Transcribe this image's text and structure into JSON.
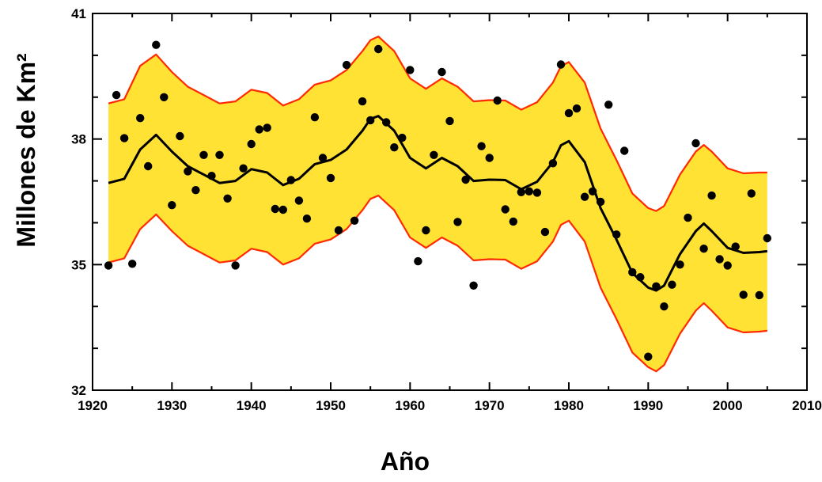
{
  "chart_data": {
    "type": "scatter",
    "title": "",
    "xlabel": "Año",
    "ylabel": "Millones de Km²",
    "xlim": [
      1920,
      2010
    ],
    "ylim": [
      32,
      41
    ],
    "x_ticks": [
      "1920",
      "1930",
      "1940",
      "1950",
      "1960",
      "1970",
      "1980",
      "1990",
      "2000",
      "2010"
    ],
    "y_ticks": [
      "32",
      "35",
      "38",
      "41"
    ],
    "colors": {
      "band": "#ffe234",
      "band_edge": "#ff2a00",
      "trend": "#000000",
      "points": "#000000"
    },
    "series": [
      {
        "type": "scatter",
        "points": [
          [
            1922,
            34.98
          ],
          [
            1923,
            39.05
          ],
          [
            1924,
            38.02
          ],
          [
            1925,
            35.02
          ],
          [
            1926,
            38.5
          ],
          [
            1927,
            37.35
          ],
          [
            1928,
            40.25
          ],
          [
            1929,
            39.0
          ],
          [
            1930,
            36.42
          ],
          [
            1931,
            38.07
          ],
          [
            1932,
            37.23
          ],
          [
            1933,
            36.78
          ],
          [
            1934,
            37.62
          ],
          [
            1935,
            37.12
          ],
          [
            1936,
            37.62
          ],
          [
            1937,
            36.58
          ],
          [
            1938,
            34.98
          ],
          [
            1939,
            37.3
          ],
          [
            1940,
            37.88
          ],
          [
            1941,
            38.23
          ],
          [
            1942,
            38.27
          ],
          [
            1943,
            36.33
          ],
          [
            1944,
            36.31
          ],
          [
            1945,
            37.02
          ],
          [
            1946,
            36.53
          ],
          [
            1947,
            36.1
          ],
          [
            1948,
            38.52
          ],
          [
            1949,
            37.55
          ],
          [
            1950,
            37.07
          ],
          [
            1951,
            35.82
          ],
          [
            1952,
            39.77
          ],
          [
            1953,
            36.05
          ],
          [
            1954,
            38.9
          ],
          [
            1955,
            38.45
          ],
          [
            1956,
            40.15
          ],
          [
            1957,
            38.4
          ],
          [
            1958,
            37.8
          ],
          [
            1959,
            38.03
          ],
          [
            1960,
            39.65
          ],
          [
            1961,
            35.08
          ],
          [
            1962,
            35.82
          ],
          [
            1963,
            37.62
          ],
          [
            1964,
            39.6
          ],
          [
            1965,
            38.43
          ],
          [
            1966,
            36.02
          ],
          [
            1967,
            37.03
          ],
          [
            1968,
            34.5
          ],
          [
            1969,
            37.83
          ],
          [
            1970,
            37.55
          ],
          [
            1971,
            38.92
          ],
          [
            1972,
            36.32
          ],
          [
            1973,
            36.03
          ],
          [
            1974,
            36.73
          ],
          [
            1975,
            36.75
          ],
          [
            1976,
            36.72
          ],
          [
            1977,
            35.78
          ],
          [
            1978,
            37.42
          ],
          [
            1979,
            39.78
          ],
          [
            1980,
            38.62
          ],
          [
            1981,
            38.73
          ],
          [
            1982,
            36.62
          ],
          [
            1983,
            36.75
          ],
          [
            1984,
            36.5
          ],
          [
            1985,
            38.82
          ],
          [
            1986,
            35.72
          ],
          [
            1987,
            37.72
          ],
          [
            1988,
            34.82
          ],
          [
            1989,
            34.7
          ],
          [
            1990,
            32.8
          ],
          [
            1991,
            34.48
          ],
          [
            1992,
            34.0
          ],
          [
            1993,
            34.52
          ],
          [
            1994,
            35.0
          ],
          [
            1995,
            36.12
          ],
          [
            1996,
            37.9
          ],
          [
            1997,
            35.38
          ],
          [
            1998,
            36.65
          ],
          [
            1999,
            35.13
          ],
          [
            2000,
            34.98
          ],
          [
            2001,
            35.43
          ],
          [
            2002,
            34.28
          ],
          [
            2003,
            36.7
          ],
          [
            2004,
            34.27
          ],
          [
            2005,
            35.63
          ]
        ]
      },
      {
        "type": "line",
        "points": [
          [
            1922,
            36.95
          ],
          [
            1924,
            37.05
          ],
          [
            1926,
            37.75
          ],
          [
            1928,
            38.1
          ],
          [
            1930,
            37.7
          ],
          [
            1932,
            37.35
          ],
          [
            1934,
            37.15
          ],
          [
            1936,
            36.95
          ],
          [
            1938,
            37.0
          ],
          [
            1940,
            37.28
          ],
          [
            1942,
            37.2
          ],
          [
            1944,
            36.9
          ],
          [
            1946,
            37.05
          ],
          [
            1948,
            37.4
          ],
          [
            1950,
            37.5
          ],
          [
            1952,
            37.75
          ],
          [
            1954,
            38.2
          ],
          [
            1955,
            38.48
          ],
          [
            1956,
            38.55
          ],
          [
            1958,
            38.2
          ],
          [
            1960,
            37.55
          ],
          [
            1962,
            37.3
          ],
          [
            1964,
            37.55
          ],
          [
            1966,
            37.35
          ],
          [
            1968,
            37.0
          ],
          [
            1970,
            37.03
          ],
          [
            1972,
            37.02
          ],
          [
            1974,
            36.8
          ],
          [
            1976,
            36.98
          ],
          [
            1978,
            37.45
          ],
          [
            1979,
            37.85
          ],
          [
            1980,
            37.95
          ],
          [
            1982,
            37.45
          ],
          [
            1984,
            36.35
          ],
          [
            1986,
            35.6
          ],
          [
            1988,
            34.8
          ],
          [
            1990,
            34.45
          ],
          [
            1991,
            34.38
          ],
          [
            1992,
            34.5
          ],
          [
            1994,
            35.25
          ],
          [
            1996,
            35.8
          ],
          [
            1997,
            35.98
          ],
          [
            1998,
            35.8
          ],
          [
            2000,
            35.4
          ],
          [
            2002,
            35.28
          ],
          [
            2004,
            35.3
          ],
          [
            2005,
            35.32
          ]
        ]
      },
      {
        "type": "line",
        "points": [
          [
            1922,
            38.85
          ],
          [
            1924,
            38.95
          ],
          [
            1926,
            39.75
          ],
          [
            1928,
            40.02
          ],
          [
            1930,
            39.6
          ],
          [
            1932,
            39.25
          ],
          [
            1934,
            39.05
          ],
          [
            1936,
            38.85
          ],
          [
            1938,
            38.9
          ],
          [
            1940,
            39.18
          ],
          [
            1942,
            39.1
          ],
          [
            1944,
            38.8
          ],
          [
            1946,
            38.95
          ],
          [
            1948,
            39.3
          ],
          [
            1950,
            39.4
          ],
          [
            1952,
            39.65
          ],
          [
            1954,
            40.1
          ],
          [
            1955,
            40.36
          ],
          [
            1956,
            40.45
          ],
          [
            1958,
            40.1
          ],
          [
            1960,
            39.45
          ],
          [
            1962,
            39.2
          ],
          [
            1964,
            39.45
          ],
          [
            1966,
            39.25
          ],
          [
            1968,
            38.9
          ],
          [
            1970,
            38.93
          ],
          [
            1972,
            38.92
          ],
          [
            1974,
            38.7
          ],
          [
            1976,
            38.88
          ],
          [
            1978,
            39.35
          ],
          [
            1979,
            39.74
          ],
          [
            1980,
            39.84
          ],
          [
            1982,
            39.35
          ],
          [
            1984,
            38.25
          ],
          [
            1986,
            37.5
          ],
          [
            1988,
            36.7
          ],
          [
            1990,
            36.35
          ],
          [
            1991,
            36.28
          ],
          [
            1992,
            36.4
          ],
          [
            1994,
            37.15
          ],
          [
            1996,
            37.7
          ],
          [
            1997,
            37.86
          ],
          [
            1998,
            37.7
          ],
          [
            2000,
            37.3
          ],
          [
            2002,
            37.18
          ],
          [
            2004,
            37.2
          ],
          [
            2005,
            37.2
          ]
        ]
      },
      {
        "type": "line",
        "points": [
          [
            1922,
            35.05
          ],
          [
            1924,
            35.15
          ],
          [
            1926,
            35.85
          ],
          [
            1928,
            36.2
          ],
          [
            1930,
            35.8
          ],
          [
            1932,
            35.45
          ],
          [
            1934,
            35.25
          ],
          [
            1936,
            35.05
          ],
          [
            1938,
            35.1
          ],
          [
            1940,
            35.38
          ],
          [
            1942,
            35.3
          ],
          [
            1944,
            35.0
          ],
          [
            1946,
            35.15
          ],
          [
            1948,
            35.5
          ],
          [
            1950,
            35.6
          ],
          [
            1952,
            35.85
          ],
          [
            1954,
            36.3
          ],
          [
            1955,
            36.57
          ],
          [
            1956,
            36.65
          ],
          [
            1958,
            36.3
          ],
          [
            1960,
            35.65
          ],
          [
            1962,
            35.4
          ],
          [
            1964,
            35.65
          ],
          [
            1966,
            35.45
          ],
          [
            1968,
            35.1
          ],
          [
            1970,
            35.13
          ],
          [
            1972,
            35.12
          ],
          [
            1974,
            34.9
          ],
          [
            1976,
            35.08
          ],
          [
            1978,
            35.55
          ],
          [
            1979,
            35.95
          ],
          [
            1980,
            36.05
          ],
          [
            1982,
            35.55
          ],
          [
            1984,
            34.45
          ],
          [
            1986,
            33.7
          ],
          [
            1988,
            32.9
          ],
          [
            1990,
            32.55
          ],
          [
            1991,
            32.45
          ],
          [
            1992,
            32.6
          ],
          [
            1994,
            33.35
          ],
          [
            1996,
            33.9
          ],
          [
            1997,
            34.08
          ],
          [
            1998,
            33.9
          ],
          [
            2000,
            33.5
          ],
          [
            2002,
            33.38
          ],
          [
            2004,
            33.4
          ],
          [
            2005,
            33.42
          ]
        ]
      }
    ]
  }
}
